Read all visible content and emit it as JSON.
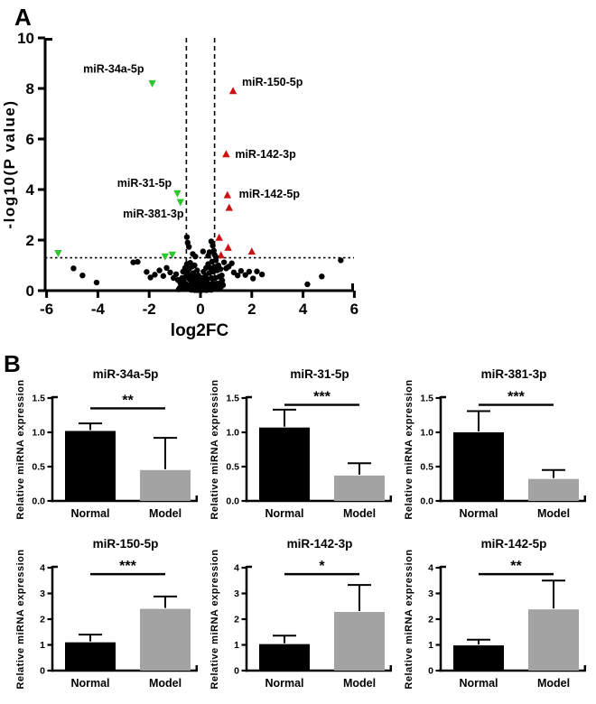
{
  "panels": {
    "a": "A",
    "b": "B"
  },
  "colors": {
    "up_regulated": "#cc1111",
    "down_regulated": "#2ec52e",
    "not_significant": "#000000",
    "bar_normal": "#000000",
    "bar_model": "#a3a3a3",
    "axis": "#000000"
  },
  "chart_data": [
    {
      "id": "volcano",
      "type": "scatter",
      "xlabel": "log2FC",
      "ylabel": "-log10(P value)",
      "xlim": [
        -6,
        6
      ],
      "ylim": [
        0,
        10
      ],
      "xticks": [
        -6,
        -4,
        -2,
        0,
        2,
        4,
        6
      ],
      "yticks": [
        0,
        2,
        4,
        6,
        8,
        10
      ],
      "grid": false,
      "threshold_y": 1.3,
      "threshold_x": [
        -0.55,
        0.55
      ],
      "series": [
        {
          "name": "down-regulated",
          "marker": "triangle-down",
          "points": [
            [
              -1.88,
              8.2
            ],
            [
              -0.9,
              3.85
            ],
            [
              -0.78,
              3.5
            ],
            [
              -5.55,
              1.48
            ],
            [
              -1.38,
              1.35
            ],
            [
              -1.1,
              1.42
            ]
          ]
        },
        {
          "name": "up-regulated",
          "marker": "triangle-up",
          "points": [
            [
              1.27,
              7.9
            ],
            [
              1.0,
              5.4
            ],
            [
              1.05,
              3.78
            ],
            [
              1.12,
              3.28
            ],
            [
              0.73,
              2.1
            ],
            [
              1.08,
              1.7
            ],
            [
              2.0,
              1.55
            ],
            [
              0.8,
              1.4
            ]
          ]
        },
        {
          "name": "not-significant",
          "marker": "circle",
          "points": [
            [
              -4.95,
              0.88
            ],
            [
              -4.6,
              0.6
            ],
            [
              -4.05,
              0.32
            ],
            [
              -2.62,
              1.12
            ],
            [
              -2.45,
              1.14
            ],
            [
              -2.1,
              0.74
            ],
            [
              -1.95,
              0.52
            ],
            [
              -1.78,
              0.63
            ],
            [
              -1.6,
              0.8
            ],
            [
              -1.45,
              0.58
            ],
            [
              -1.32,
              0.9
            ],
            [
              -1.18,
              0.72
            ],
            [
              -1.05,
              0.5
            ],
            [
              -0.95,
              0.65
            ],
            [
              -0.88,
              0.42
            ],
            [
              0.92,
              1.12
            ],
            [
              1.0,
              0.88
            ],
            [
              1.1,
              0.95
            ],
            [
              1.22,
              1.08
            ],
            [
              1.3,
              0.72
            ],
            [
              1.45,
              0.6
            ],
            [
              1.58,
              0.78
            ],
            [
              1.75,
              0.62
            ],
            [
              1.9,
              0.75
            ],
            [
              2.05,
              0.48
            ],
            [
              2.2,
              0.76
            ],
            [
              2.4,
              0.64
            ],
            [
              4.17,
              0.25
            ],
            [
              4.73,
              0.56
            ],
            [
              5.47,
              1.2
            ],
            [
              -0.53,
              2.12
            ],
            [
              -0.5,
              1.9
            ],
            [
              -0.45,
              1.73
            ],
            [
              0.42,
              1.95
            ],
            [
              0.48,
              1.78
            ],
            [
              0.52,
              1.58
            ],
            [
              0.35,
              1.52
            ],
            [
              0.55,
              1.42
            ],
            [
              0.3,
              1.38
            ],
            [
              -0.3,
              1.45
            ],
            [
              -0.2,
              1.35
            ],
            [
              0.1,
              1.55
            ],
            [
              0.6,
              1.33
            ],
            [
              -0.85,
              0.05
            ],
            [
              -0.8,
              0.12
            ],
            [
              -0.78,
              0.3
            ],
            [
              -0.75,
              0.08
            ],
            [
              -0.72,
              0.5
            ],
            [
              -0.7,
              0.2
            ],
            [
              -0.68,
              0.75
            ],
            [
              -0.65,
              0.4
            ],
            [
              -0.62,
              0.1
            ],
            [
              -0.6,
              0.9
            ],
            [
              -0.58,
              0.55
            ],
            [
              -0.55,
              0.25
            ],
            [
              -0.53,
              1.05
            ],
            [
              -0.5,
              0.7
            ],
            [
              -0.48,
              0.15
            ],
            [
              -0.45,
              0.85
            ],
            [
              -0.43,
              0.45
            ],
            [
              -0.4,
              1.1
            ],
            [
              -0.38,
              0.6
            ],
            [
              -0.35,
              0.3
            ],
            [
              -0.33,
              0.95
            ],
            [
              -0.3,
              0.12
            ],
            [
              -0.28,
              0.7
            ],
            [
              -0.25,
              0.45
            ],
            [
              -0.23,
              1.0
            ],
            [
              -0.2,
              0.25
            ],
            [
              -0.18,
              0.55
            ],
            [
              -0.15,
              0.1
            ],
            [
              -0.13,
              0.8
            ],
            [
              -0.1,
              0.35
            ],
            [
              -0.08,
              0.6
            ],
            [
              -0.05,
              0.15
            ],
            [
              -0.03,
              0.4
            ],
            [
              0.0,
              0.05
            ],
            [
              0.02,
              0.25
            ],
            [
              0.05,
              0.1
            ],
            [
              0.07,
              0.5
            ],
            [
              0.1,
              0.2
            ],
            [
              0.12,
              0.75
            ],
            [
              0.15,
              0.35
            ],
            [
              0.17,
              0.08
            ],
            [
              0.2,
              0.6
            ],
            [
              0.22,
              0.9
            ],
            [
              0.25,
              0.15
            ],
            [
              0.28,
              0.45
            ],
            [
              0.3,
              1.05
            ],
            [
              0.33,
              0.25
            ],
            [
              0.35,
              0.7
            ],
            [
              0.38,
              0.1
            ],
            [
              0.4,
              0.9
            ],
            [
              0.43,
              0.5
            ],
            [
              0.45,
              1.15
            ],
            [
              0.48,
              0.3
            ],
            [
              0.5,
              0.75
            ],
            [
              0.53,
              0.12
            ],
            [
              0.55,
              0.95
            ],
            [
              0.58,
              0.5
            ],
            [
              0.6,
              1.2
            ],
            [
              0.63,
              0.28
            ],
            [
              0.65,
              0.8
            ],
            [
              0.68,
              0.1
            ],
            [
              0.7,
              1.0
            ],
            [
              0.73,
              0.55
            ],
            [
              0.75,
              0.3
            ],
            [
              0.78,
              0.85
            ],
            [
              0.8,
              0.15
            ],
            [
              0.83,
              0.6
            ],
            [
              0.85,
              0.4
            ],
            [
              0.88,
              0.22
            ],
            [
              -0.42,
              0.05
            ],
            [
              -0.35,
              0.03
            ],
            [
              -0.28,
              0.06
            ],
            [
              -0.22,
              0.02
            ],
            [
              -0.18,
              0.05
            ],
            [
              -0.12,
              0.02
            ],
            [
              -0.07,
              0.04
            ],
            [
              0.03,
              0.02
            ],
            [
              0.08,
              0.05
            ],
            [
              0.13,
              0.03
            ],
            [
              0.18,
              0.06
            ],
            [
              0.23,
              0.02
            ],
            [
              0.28,
              0.04
            ],
            [
              0.35,
              0.04
            ],
            [
              0.42,
              0.03
            ]
          ]
        }
      ],
      "annotations": [
        {
          "text": "miR-34a-5p",
          "x": -2.2,
          "y": 8.62,
          "anchor": "end"
        },
        {
          "text": "miR-150-5p",
          "x": 1.62,
          "y": 8.1,
          "anchor": "start"
        },
        {
          "text": "miR-142-3p",
          "x": 1.35,
          "y": 5.25,
          "anchor": "start"
        },
        {
          "text": "miR-31-5p",
          "x": -1.12,
          "y": 4.1,
          "anchor": "end"
        },
        {
          "text": "miR-142-5p",
          "x": 1.5,
          "y": 3.68,
          "anchor": "start"
        },
        {
          "text": "miR-381-3p",
          "x": -0.65,
          "y": 2.9,
          "anchor": "end"
        }
      ]
    },
    {
      "id": "mir-34a-5p",
      "type": "bar",
      "title": "miR-34a-5p",
      "ylabel": "Relative miRNA expression",
      "categories": [
        "Normal",
        "Model"
      ],
      "values": [
        1.02,
        0.45
      ],
      "errors": [
        0.11,
        0.47
      ],
      "ylim": [
        0,
        1.5
      ],
      "yticks": [
        0,
        0.5,
        1.0,
        1.5
      ],
      "tick_decimals": 1,
      "significance": "**",
      "sig_line_y": 1.35
    },
    {
      "id": "mir-31-5p",
      "type": "bar",
      "title": "miR-31-5p",
      "ylabel": "Relative miRNA expression",
      "categories": [
        "Normal",
        "Model"
      ],
      "values": [
        1.07,
        0.37
      ],
      "errors": [
        0.26,
        0.18
      ],
      "ylim": [
        0,
        1.5
      ],
      "yticks": [
        0,
        0.5,
        1.0,
        1.5
      ],
      "tick_decimals": 1,
      "significance": "***",
      "sig_line_y": 1.4
    },
    {
      "id": "mir-381-3p",
      "type": "bar",
      "title": "miR-381-3p",
      "ylabel": "Relative miRNA expression",
      "categories": [
        "Normal",
        "Model"
      ],
      "values": [
        1.0,
        0.32
      ],
      "errors": [
        0.31,
        0.13
      ],
      "ylim": [
        0,
        1.5
      ],
      "yticks": [
        0,
        0.5,
        1.0,
        1.5
      ],
      "tick_decimals": 1,
      "significance": "***",
      "sig_line_y": 1.4
    },
    {
      "id": "mir-150-5p",
      "type": "bar",
      "title": "miR-150-5p",
      "ylabel": "Relative miRNA expression",
      "categories": [
        "Normal",
        "Model"
      ],
      "values": [
        1.1,
        2.4
      ],
      "errors": [
        0.3,
        0.48
      ],
      "ylim": [
        0,
        4
      ],
      "yticks": [
        0,
        1,
        2,
        3,
        4
      ],
      "tick_decimals": 0,
      "significance": "***",
      "sig_line_y": 3.75
    },
    {
      "id": "mir-142-3p",
      "type": "bar",
      "title": "miR-142-3p",
      "ylabel": "Relative miRNA expression",
      "categories": [
        "Normal",
        "Model"
      ],
      "values": [
        1.03,
        2.28
      ],
      "errors": [
        0.33,
        1.05
      ],
      "ylim": [
        0,
        4
      ],
      "yticks": [
        0,
        1,
        2,
        3,
        4
      ],
      "tick_decimals": 0,
      "significance": "*",
      "sig_line_y": 3.75
    },
    {
      "id": "mir-142-5p",
      "type": "bar",
      "title": "miR-142-5p",
      "ylabel": "Relative miRNA expression",
      "categories": [
        "Normal",
        "Model"
      ],
      "values": [
        0.98,
        2.38
      ],
      "errors": [
        0.22,
        1.12
      ],
      "ylim": [
        0,
        4
      ],
      "yticks": [
        0,
        1,
        2,
        3,
        4
      ],
      "tick_decimals": 0,
      "significance": "**",
      "sig_line_y": 3.75
    }
  ]
}
